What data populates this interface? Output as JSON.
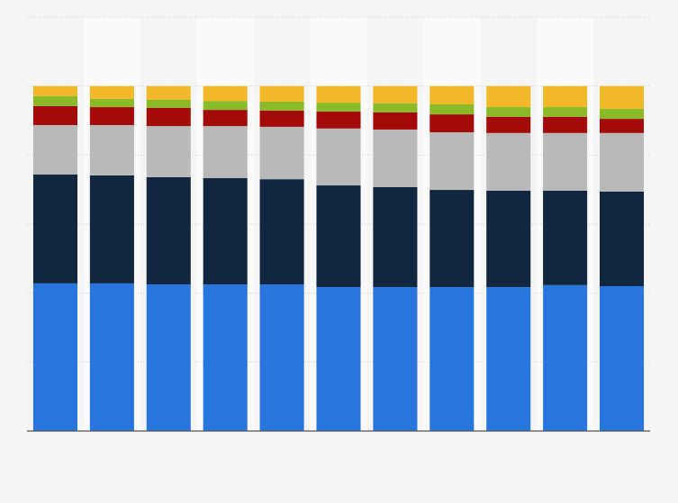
{
  "chart_data": {
    "type": "stacked_bar",
    "categories": [
      null,
      null,
      null,
      null,
      null,
      null,
      null,
      null,
      null,
      null,
      null
    ],
    "series": [
      {
        "color": "#2876dd",
        "values": [
          42.8,
          42.8,
          42.5,
          42.5,
          42.5,
          41.7,
          41.7,
          41.7,
          41.7,
          42.3,
          42.0
        ]
      },
      {
        "color": "#10273f",
        "values": [
          31.6,
          31.3,
          31.1,
          30.8,
          30.5,
          29.5,
          29.0,
          28.2,
          28.0,
          27.4,
          27.4
        ]
      },
      {
        "color": "#b9b9b9",
        "values": [
          14.3,
          14.6,
          14.8,
          15.1,
          15.2,
          16.5,
          16.7,
          16.7,
          16.7,
          16.7,
          17.0
        ]
      },
      {
        "color": "#a30b0b",
        "values": [
          5.5,
          5.2,
          5.3,
          4.7,
          4.7,
          4.9,
          5.0,
          5.2,
          4.7,
          4.7,
          4.1
        ]
      },
      {
        "color": "#8aba28",
        "values": [
          2.9,
          2.4,
          2.3,
          2.6,
          2.6,
          2.6,
          2.6,
          2.9,
          2.8,
          2.8,
          2.9
        ]
      },
      {
        "color": "#f1b82a",
        "values": [
          2.9,
          3.7,
          4.0,
          4.3,
          4.5,
          4.8,
          5.0,
          5.3,
          6.1,
          6.1,
          6.6
        ]
      }
    ],
    "ylim": [
      0,
      120
    ],
    "yticks": [
      0,
      20,
      40,
      60,
      80,
      100,
      120
    ],
    "grid": true
  }
}
